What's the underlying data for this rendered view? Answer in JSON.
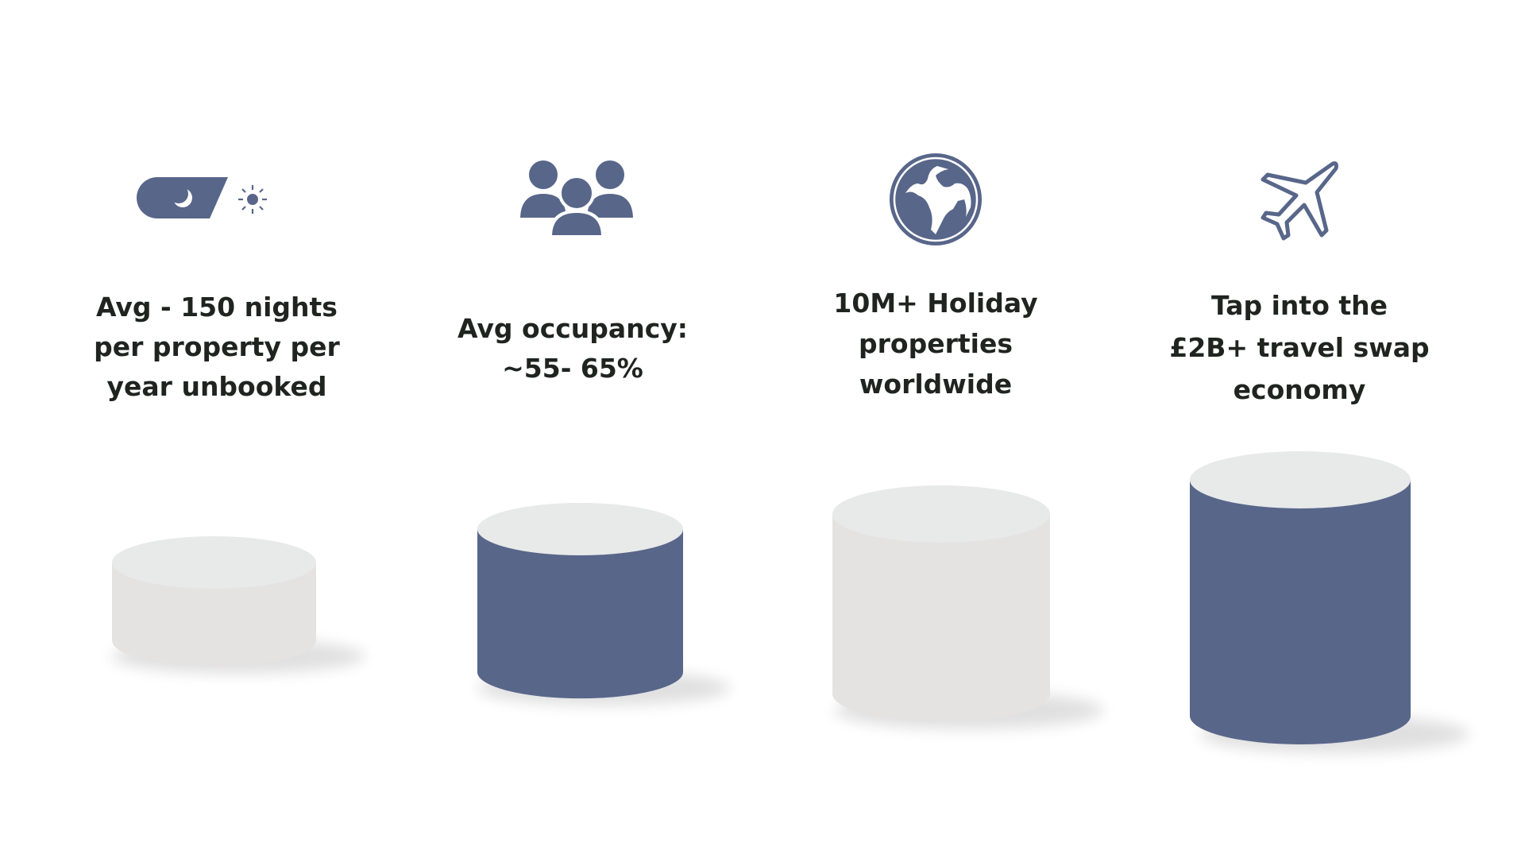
{
  "colors": {
    "accent": "#58668a",
    "light_side": "#e5e2e2",
    "light_top": "#e8e9e9",
    "text": "#1f2420"
  },
  "stats": [
    {
      "icon": "day-night-toggle-icon",
      "lines": [
        "Avg - 150 nights",
        "per property per",
        "year unbooked"
      ],
      "cylinder_color": "light",
      "relative_height": 1
    },
    {
      "icon": "people-group-icon",
      "lines": [
        "Avg occupancy:",
        "~55- 65%"
      ],
      "cylinder_color": "accent",
      "relative_height": 2
    },
    {
      "icon": "globe-icon",
      "lines": [
        "10M+ Holiday",
        "properties",
        "worldwide"
      ],
      "cylinder_color": "light",
      "relative_height": 3
    },
    {
      "icon": "airplane-icon",
      "lines": [
        "Tap into the",
        "£2B+ travel swap",
        "economy"
      ],
      "cylinder_color": "accent",
      "relative_height": 4
    }
  ]
}
